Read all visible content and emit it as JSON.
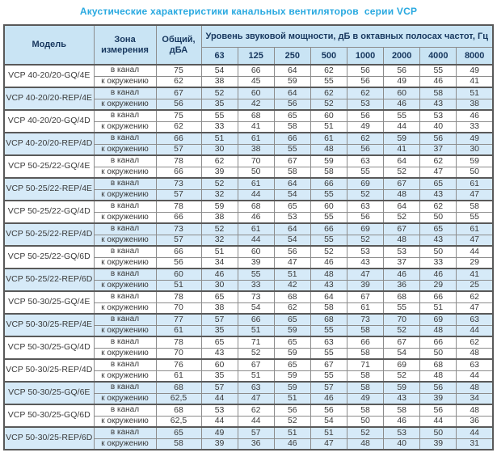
{
  "title": "Акустические характеристики канальных вентиляторов  серии VCP",
  "colors": {
    "accent": "#29a9e0",
    "header_bg": "#c9e4f4",
    "stripe_bg": "#d6eaf8"
  },
  "table": {
    "headers": {
      "model": "Модель",
      "zone": "Зона измерения",
      "total": "Общий, дБА",
      "spl": "Уровень звуковой мощности, дБ в октавных полосах частот, Гц",
      "frequencies": [
        "63",
        "125",
        "250",
        "500",
        "1000",
        "2000",
        "4000",
        "8000"
      ]
    },
    "groups": [
      {
        "model": "VCP 40-20/20-GQ/4E",
        "shaded": false,
        "rows": [
          {
            "zone": "в канал",
            "total": "75",
            "levels": [
              54,
              66,
              64,
              62,
              56,
              56,
              55,
              49
            ]
          },
          {
            "zone": "к окружению",
            "total": "62",
            "levels": [
              38,
              45,
              59,
              55,
              56,
              49,
              46,
              41
            ]
          }
        ]
      },
      {
        "model": "VCP 40-20/20-REP/4E",
        "shaded": true,
        "rows": [
          {
            "zone": "в канал",
            "total": "67",
            "levels": [
              52,
              60,
              64,
              62,
              62,
              60,
              58,
              51
            ]
          },
          {
            "zone": "к окружению",
            "total": "56",
            "levels": [
              35,
              42,
              56,
              52,
              53,
              46,
              43,
              38
            ]
          }
        ]
      },
      {
        "model": "VCP 40-20/20-GQ/4D",
        "shaded": false,
        "rows": [
          {
            "zone": "в канал",
            "total": "75",
            "levels": [
              55,
              68,
              65,
              60,
              56,
              55,
              53,
              46
            ]
          },
          {
            "zone": "к окружению",
            "total": "62",
            "levels": [
              33,
              41,
              58,
              51,
              49,
              44,
              40,
              33
            ]
          }
        ]
      },
      {
        "model": "VCP 40-20/20-REP/4D",
        "shaded": true,
        "rows": [
          {
            "zone": "в канал",
            "total": "66",
            "levels": [
              51,
              61,
              66,
              61,
              62,
              59,
              56,
              49
            ]
          },
          {
            "zone": "к окружению",
            "total": "57",
            "levels": [
              30,
              38,
              55,
              48,
              56,
              41,
              37,
              30
            ]
          }
        ]
      },
      {
        "model": "VCP 50-25/22-GQ/4E",
        "shaded": false,
        "rows": [
          {
            "zone": "в канал",
            "total": "78",
            "levels": [
              62,
              70,
              67,
              59,
              63,
              64,
              62,
              59
            ]
          },
          {
            "zone": "к окружению",
            "total": "66",
            "levels": [
              39,
              50,
              58,
              58,
              55,
              52,
              47,
              50
            ]
          }
        ]
      },
      {
        "model": "VCP 50-25/22-REP/4E",
        "shaded": true,
        "rows": [
          {
            "zone": "в канал",
            "total": "73",
            "levels": [
              52,
              61,
              64,
              66,
              69,
              67,
              65,
              61
            ]
          },
          {
            "zone": "к окружению",
            "total": "57",
            "levels": [
              32,
              44,
              54,
              55,
              52,
              48,
              43,
              47
            ]
          }
        ]
      },
      {
        "model": "VCP 50-25/22-GQ/4D",
        "shaded": false,
        "rows": [
          {
            "zone": "в канал",
            "total": "78",
            "levels": [
              59,
              68,
              65,
              60,
              63,
              64,
              62,
              58
            ]
          },
          {
            "zone": "к окружению",
            "total": "66",
            "levels": [
              38,
              46,
              53,
              55,
              56,
              52,
              50,
              55
            ]
          }
        ]
      },
      {
        "model": "VCP 50-25/22-REP/4D",
        "shaded": true,
        "rows": [
          {
            "zone": "в канал",
            "total": "73",
            "levels": [
              52,
              61,
              64,
              66,
              69,
              67,
              65,
              61
            ]
          },
          {
            "zone": "к окружению",
            "total": "57",
            "levels": [
              32,
              44,
              54,
              55,
              52,
              48,
              43,
              47
            ]
          }
        ]
      },
      {
        "model": "VCP 50-25/22-GQ/6D",
        "shaded": false,
        "rows": [
          {
            "zone": "в канал",
            "total": "66",
            "levels": [
              51,
              60,
              56,
              52,
              53,
              53,
              50,
              44
            ]
          },
          {
            "zone": "к окружению",
            "total": "56",
            "levels": [
              34,
              39,
              47,
              46,
              43,
              37,
              33,
              29
            ]
          }
        ]
      },
      {
        "model": "VCP 50-25/22-REP/6D",
        "shaded": true,
        "rows": [
          {
            "zone": "в канал",
            "total": "60",
            "levels": [
              46,
              55,
              51,
              48,
              47,
              46,
              46,
              41
            ]
          },
          {
            "zone": "к окружению",
            "total": "51",
            "levels": [
              30,
              33,
              42,
              43,
              39,
              36,
              29,
              25
            ]
          }
        ]
      },
      {
        "model": "VCP 50-30/25-GQ/4E",
        "shaded": false,
        "rows": [
          {
            "zone": "в канал",
            "total": "78",
            "levels": [
              65,
              73,
              68,
              64,
              67,
              68,
              66,
              62
            ]
          },
          {
            "zone": "к окружению",
            "total": "70",
            "levels": [
              38,
              54,
              62,
              58,
              61,
              55,
              51,
              47
            ]
          }
        ]
      },
      {
        "model": "VCP 50-30/25-REP/4E",
        "shaded": true,
        "rows": [
          {
            "zone": "в канал",
            "total": "77",
            "levels": [
              57,
              66,
              65,
              68,
              73,
              70,
              69,
              63
            ]
          },
          {
            "zone": "к окружению",
            "total": "61",
            "levels": [
              35,
              51,
              59,
              55,
              58,
              52,
              48,
              44
            ]
          }
        ]
      },
      {
        "model": "VCP 50-30/25-GQ/4D",
        "shaded": false,
        "rows": [
          {
            "zone": "в канал",
            "total": "78",
            "levels": [
              65,
              71,
              65,
              63,
              66,
              67,
              66,
              62
            ]
          },
          {
            "zone": "к окружению",
            "total": "70",
            "levels": [
              43,
              52,
              59,
              55,
              58,
              54,
              50,
              48
            ]
          }
        ]
      },
      {
        "model": "VCP 50-30/25-REP/4D",
        "shaded": false,
        "rows": [
          {
            "zone": "в канал",
            "total": "76",
            "levels": [
              60,
              67,
              65,
              67,
              71,
              69,
              68,
              63
            ]
          },
          {
            "zone": "к окружению",
            "total": "61",
            "levels": [
              35,
              51,
              59,
              55,
              58,
              52,
              48,
              44
            ]
          }
        ]
      },
      {
        "model": "VCP 50-30/25-GQ/6E",
        "shaded": true,
        "rows": [
          {
            "zone": "в канал",
            "total": "68",
            "levels": [
              57,
              63,
              59,
              57,
              58,
              59,
              56,
              48
            ]
          },
          {
            "zone": "к окружению",
            "total": "62,5",
            "levels": [
              44,
              47,
              51,
              46,
              49,
              43,
              39,
              34
            ]
          }
        ]
      },
      {
        "model": "VCP 50-30/25-GQ/6D",
        "shaded": false,
        "rows": [
          {
            "zone": "в канал",
            "total": "68",
            "levels": [
              53,
              62,
              56,
              56,
              58,
              58,
              56,
              48
            ]
          },
          {
            "zone": "к окружению",
            "total": "62,5",
            "levels": [
              44,
              44,
              52,
              54,
              50,
              46,
              44,
              36
            ]
          }
        ]
      },
      {
        "model": "VCP 50-30/25-REP/6D",
        "shaded": true,
        "rows": [
          {
            "zone": "в канал",
            "total": "65",
            "levels": [
              49,
              57,
              51,
              51,
              52,
              53,
              50,
              44
            ]
          },
          {
            "zone": "к окружению",
            "total": "58",
            "levels": [
              39,
              36,
              46,
              47,
              48,
              40,
              39,
              31
            ]
          }
        ]
      }
    ]
  }
}
